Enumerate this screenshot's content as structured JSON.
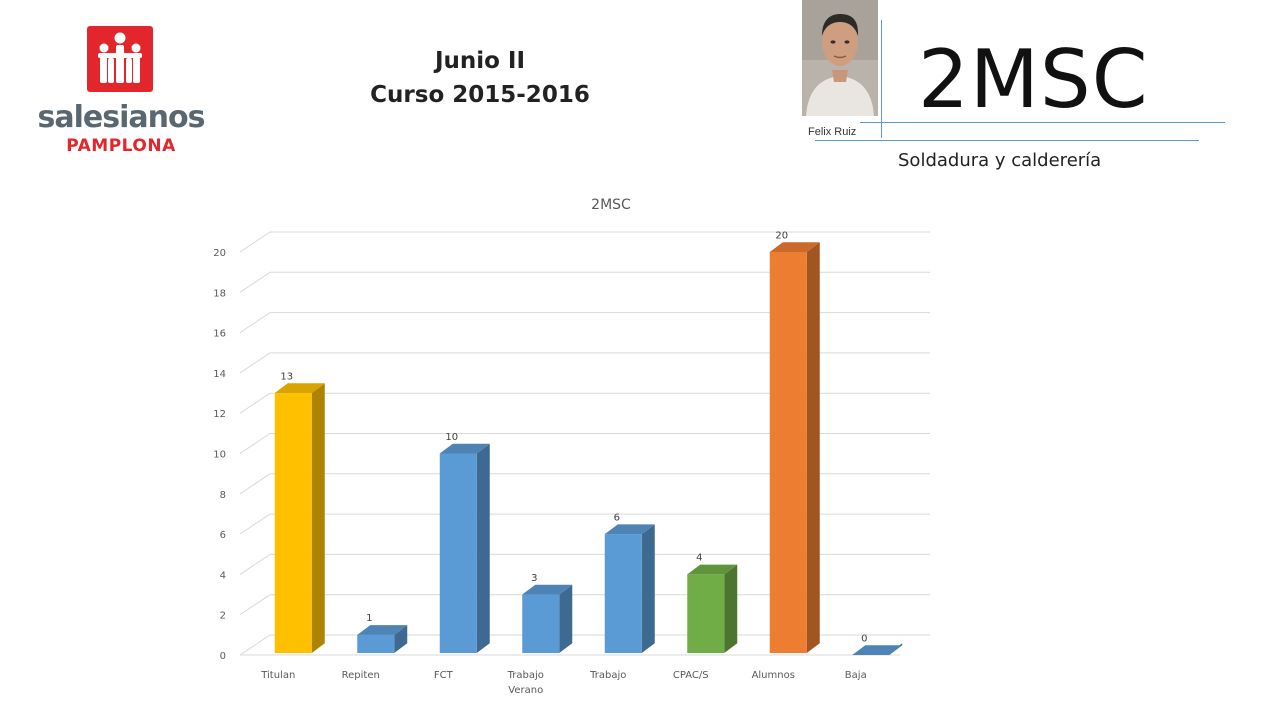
{
  "logo": {
    "name": "salesianos",
    "subtitle": "PAMPLONA",
    "brand_color": "#e3262b",
    "text_color": "#5b6770"
  },
  "header": {
    "line1": "Junio II",
    "line2": "Curso 2015-2016"
  },
  "teacher": {
    "name": "Felix Ruiz"
  },
  "group": {
    "code": "2MSC",
    "subject": "Soldadura y calderería"
  },
  "chart_data": {
    "type": "bar",
    "title": "2MSC",
    "categories": [
      "Titulan",
      "Repiten",
      "FCT",
      "Trabajo Verano",
      "Trabajo",
      "CPAC/S",
      "Alumnos",
      "Baja"
    ],
    "category_lines": [
      [
        "Titulan"
      ],
      [
        "Repiten"
      ],
      [
        "FCT"
      ],
      [
        "Trabajo",
        "Verano"
      ],
      [
        "Trabajo"
      ],
      [
        "CPAC/S"
      ],
      [
        "Alumnos"
      ],
      [
        "Baja"
      ]
    ],
    "values": [
      13,
      1,
      10,
      3,
      6,
      4,
      20,
      0
    ],
    "colors": [
      "#ffc000",
      "#5b9bd5",
      "#5b9bd5",
      "#5b9bd5",
      "#5b9bd5",
      "#70ad47",
      "#ed7d31",
      "#5b9bd5"
    ],
    "ylim": [
      0,
      20
    ],
    "yticks": [
      0,
      2,
      4,
      6,
      8,
      10,
      12,
      14,
      16,
      18,
      20
    ],
    "grid": true,
    "style": "3d-column",
    "xlabel": "",
    "ylabel": ""
  }
}
